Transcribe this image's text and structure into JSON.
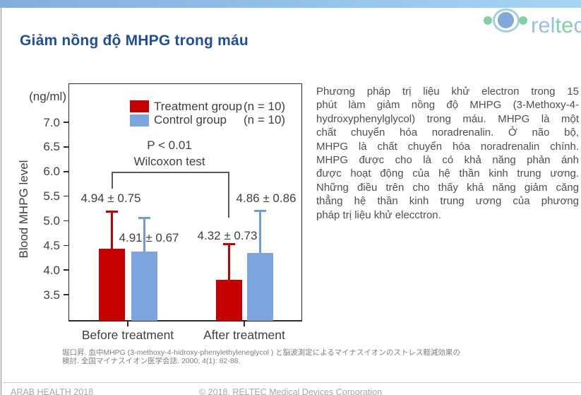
{
  "header": {
    "title": "Giảm nồng độ MHPG trong máu"
  },
  "logo": {
    "brand": "reltec",
    "letters": [
      {
        "ch": "r",
        "color": "#97c0ea"
      },
      {
        "ch": "e",
        "color": "#97c0ea"
      },
      {
        "ch": "l",
        "color": "#97c0ea"
      },
      {
        "ch": "t",
        "color": "#7fd3a2"
      },
      {
        "ch": "e",
        "color": "#7fd3a2"
      },
      {
        "ch": "c",
        "color": "#97c0ea"
      }
    ]
  },
  "chart_data": {
    "type": "bar",
    "unit_label": "(ng/ml)",
    "ylabel": "Blood MHPG level",
    "xlabel": "",
    "yticks": [
      3.5,
      4.0,
      4.5,
      5.0,
      5.5,
      6.0,
      6.5,
      7.0
    ],
    "ylim_drawn": [
      2.955,
      7.78
    ],
    "grid": false,
    "legend_position": "top-center-inside",
    "categories": [
      "Before treatment",
      "After treatment"
    ],
    "series": [
      {
        "name": "Treatment group",
        "count_label": "(n = 10)",
        "color": "#c40000",
        "whisker_color": "#c40000",
        "means": [
          4.94,
          4.32
        ],
        "sds": [
          0.75,
          0.73
        ],
        "mean_sd_labels": [
          "4.94 ± 0.75",
          "4.32 ± 0.73"
        ],
        "bar_values_drawn": [
          4.43,
          3.8
        ]
      },
      {
        "name": "Control group",
        "count_label": "(n = 10)",
        "color": "#7ca5df",
        "whisker_color": "#6d9ddb",
        "means": [
          4.91,
          4.86
        ],
        "sds": [
          0.67,
          0.86
        ],
        "mean_sd_labels": [
          "4.91 ± 0.67",
          "4.86 ± 0.86"
        ],
        "bar_values_drawn": [
          4.38,
          4.34
        ]
      }
    ],
    "annotation": {
      "line1": "P < 0.01",
      "line2": "Wilcoxon test",
      "bracket_connects": "treatment bars before vs after"
    }
  },
  "description": {
    "lines": [
      "Phương pháp trị liệu khử electron trong 15",
      "phút làm giảm nồng độ MHPG (3-Methoxy-4-",
      "hydroxyphenylglycol) trong máu. MHPG là một",
      "chất chuyển hóa noradrenalin. Ở não bộ,",
      "MHPG là chất chuyển hóa noradrenalin chính.",
      "MHPG được cho là có khả năng phản ánh",
      "được hoạt động của hệ thần kinh trung ương.",
      "Những điều trên cho thấy khả năng giảm căng",
      "thẳng hệ thần kinh trung ương của phương",
      "pháp trị liệu khử elecctron."
    ]
  },
  "citation": {
    "line1": "堀口昇. 血中MHPG (3-methoxy-4-hidroxy-phenylethyleneglycol ) と脳波測定によるマイナスイオンのストレス軽減効果の",
    "line2": "検討. 全国マイナスイオン医学会誌. 2000; 4(1): 82-88."
  },
  "footer": {
    "left": "ARAB HEALTH 2018",
    "center": "© 2018, RELTEC Medical Devices Corporation"
  }
}
